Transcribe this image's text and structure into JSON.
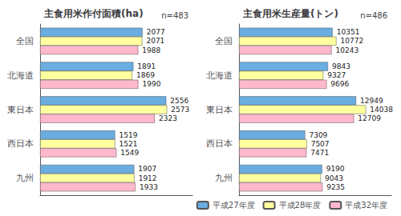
{
  "chart_data": [
    {
      "type": "bar",
      "orientation": "horizontal",
      "title": "主食用米作付面積(ha)",
      "annotations": [
        "n=483"
      ],
      "categories": [
        "全国",
        "北海道",
        "東日本",
        "西日本",
        "九州"
      ],
      "series": [
        {
          "name": "平成27年度",
          "color": "#6aade0",
          "values": [
            2077,
            1891,
            2556,
            1519,
            1907
          ]
        },
        {
          "name": "平成28年度",
          "color": "#ffffa0",
          "values": [
            2071,
            1869,
            2573,
            1521,
            1912
          ]
        },
        {
          "name": "平成32年度",
          "color": "#ffb8cc",
          "values": [
            1988,
            1990,
            2323,
            1549,
            1933
          ]
        }
      ],
      "xlim": [
        0,
        3087.6
      ],
      "data_labels": true,
      "tick_labels": "y",
      "grid": false
    },
    {
      "type": "bar",
      "orientation": "horizontal",
      "title": "主食用米生産量(トン)",
      "annotations": [
        "n=486"
      ],
      "categories": [
        "全国",
        "北海道",
        "東日本",
        "西日本",
        "九州"
      ],
      "series": [
        {
          "name": "平成27年度",
          "color": "#6aade0",
          "values": [
            10351,
            9843,
            12949,
            7309,
            9190
          ]
        },
        {
          "name": "平成28年度",
          "color": "#ffffa0",
          "values": [
            10772,
            9327,
            14038,
            7507,
            9043
          ]
        },
        {
          "name": "平成32年度",
          "color": "#ffb8cc",
          "values": [
            10243,
            9696,
            12709,
            7471,
            9235
          ]
        }
      ],
      "xlim": [
        0,
        16845.6
      ],
      "data_labels": true,
      "tick_labels": "y",
      "grid": false,
      "legend": "lower right"
    }
  ]
}
